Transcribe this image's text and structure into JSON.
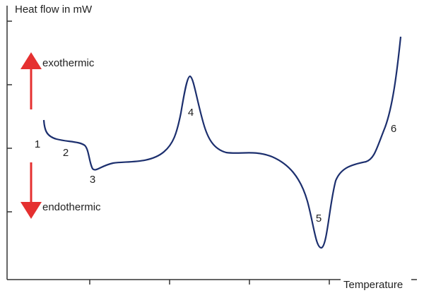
{
  "axes": {
    "y_label": "Heat flow in mW",
    "x_label": "Temperature"
  },
  "annotations": {
    "exothermic": "exothermic",
    "endothermic": "endothermic"
  },
  "points": [
    "1",
    "2",
    "3",
    "4",
    "5",
    "6"
  ]
}
